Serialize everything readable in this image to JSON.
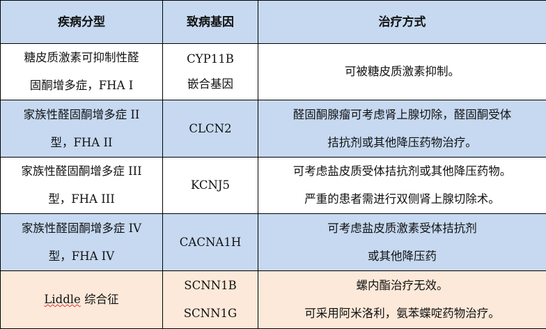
{
  "header": [
    "疾病分型",
    "致病基因",
    "治疗方式"
  ],
  "rows": [
    {
      "type": [
        "糖皮质激素可抑制性醛",
        "固酮增多症，FHA I"
      ],
      "gene": [
        "CYP11B",
        "嵌合基因"
      ],
      "treatment": [
        "可被糖皮质激素抑制。"
      ],
      "color": "#ffffff"
    },
    {
      "type": [
        "家族性醛固酮增多症 II",
        "型，FHA II"
      ],
      "gene": [
        "CLCN2"
      ],
      "treatment": [
        "醛固酮腺瘤可考虑肾上腺切除，醛固酮受体",
        "拮抗剂或其他降压药物治疗。"
      ],
      "color": "#c6d9f1"
    },
    {
      "type": [
        "家族性醛固酮增多症 III",
        "型，FHA III"
      ],
      "gene": [
        "KCNJ5"
      ],
      "treatment": [
        "可考虑盐皮质受体拮抗剂或其他降压药物。",
        "严重的患者需进行双侧肾上腺切除术。"
      ],
      "color": "#ffffff"
    },
    {
      "type": [
        "家族性醛固酮增多症 IV",
        "型，FHA IV"
      ],
      "gene": [
        "CACNA1H"
      ],
      "treatment": [
        "可考虑盐皮质激素受体拮抗剂",
        "或其他降压药"
      ],
      "color": "#c6d9f1"
    },
    {
      "type": [
        "Liddle",
        "综合征"
      ],
      "gene": [
        "SCNN1B",
        "SCNN1G"
      ],
      "treatment": [
        "螺内酯治疗无效。",
        "可采用阿米洛利，氨苯蝶啶药物治疗。"
      ],
      "color": "#fde9d9"
    }
  ]
}
